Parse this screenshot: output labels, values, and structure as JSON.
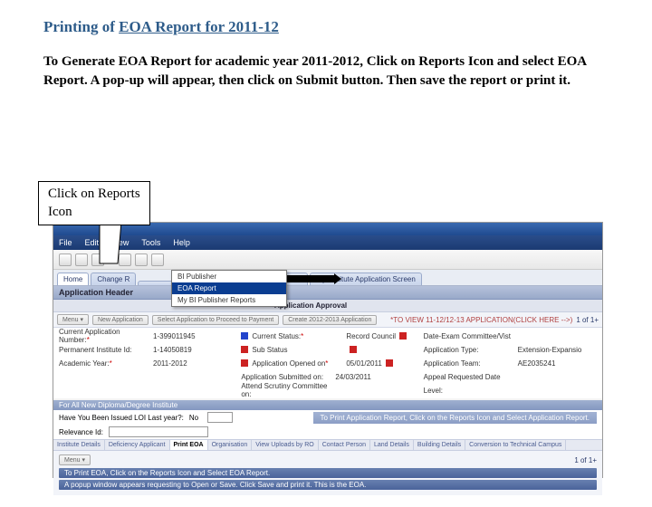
{
  "page": {
    "title_prefix": "Printing of ",
    "title_underline": "EOA Report for 2011-12",
    "instruction": "To Generate EOA Report for academic year 2011-2012, Click on Reports Icon and select EOA Report. A pop-up will appear, then click on Submit button. Then save the report or print it."
  },
  "callout": {
    "text": "Click on Reports\nIcon"
  },
  "menubar": {
    "items": [
      "File",
      "Edit",
      "View",
      "Tools",
      "Help"
    ]
  },
  "tabs": {
    "items": [
      "Home",
      "Change R",
      "",
      "ion Approval",
      "My Institute Application Screen"
    ]
  },
  "dropdown": {
    "items": [
      "BI Publisher",
      "EOA Report",
      "My BI Publisher Reports"
    ],
    "selected_index": 1
  },
  "app": {
    "header_left": "Application Header",
    "header_right": "Application Approval",
    "banner_left": "",
    "banner_right": "*TO VIEW 11-12/12-13 APPLICATION(CLICK HERE -->)",
    "pager": "1 of 1+"
  },
  "actions": {
    "menu_label": "Menu ▾",
    "buttons": [
      "New Application",
      "Select Application to Proceed to Payment",
      "Create 2012-2013 Application"
    ]
  },
  "form": {
    "rows": [
      {
        "label": "Current Application Number:",
        "req": true,
        "value": "1-399011945",
        "label2": "Current Status:",
        "req2": true,
        "value2": "Record Council",
        "flag2": "blue",
        "label3": "Date-Exam Committee/Vist",
        "value3": ""
      },
      {
        "label": "Permanent Institute Id:",
        "req": false,
        "value": "1-14050819",
        "label2": "Sub Status",
        "req2": false,
        "value2": "",
        "flag2": "red",
        "label3": "Application Type:",
        "value3": "Extension-Expansio"
      },
      {
        "label": "Academic Year:",
        "req": true,
        "value": "2011-2012",
        "label2": "Application Opened on",
        "req2": true,
        "value2": "05/01/2011",
        "flag2": "red",
        "label3": "Application Team:",
        "value3": "AE2035241"
      },
      {
        "label": "",
        "req": false,
        "value": "",
        "label2": "Application Submitted on:",
        "req2": false,
        "value2": "24/03/2011",
        "flag2": "",
        "label3": "Appeal Requested Date",
        "value3": ""
      },
      {
        "label": "",
        "req": false,
        "value": "",
        "label2": "Attend Scrutiny Committee on:",
        "req2": false,
        "value2": "",
        "flag2": "",
        "label3": "Level:",
        "value3": ""
      }
    ]
  },
  "sections": {
    "diploma": "For All New Diploma/Degree Institute",
    "issued_label": "Have You Been Issued LOI Last year?:",
    "issued_value": "No",
    "relevance_label": "Relevance Id:",
    "hint_right": "To Print Application Report, Click on the Reports Icon and Select Application Report."
  },
  "bottomTabs": {
    "items": [
      "Institute Details",
      "Deficiency Applicant",
      "Print EOA",
      "Organisation",
      "View Uploads by RO",
      "Contact Person",
      "Land Details",
      "Building Details",
      "Conversion to Technical Campus"
    ],
    "active_index": 2
  },
  "footer": {
    "pager": "1 of 1+",
    "msg1": "To Print EOA, Click on the Reports Icon and Select EOA Report.",
    "msg2": "A popup window appears requesting to Open or Save. Click Save and print it. This is the EOA."
  },
  "colors": {
    "title": "#2e5c8a"
  }
}
